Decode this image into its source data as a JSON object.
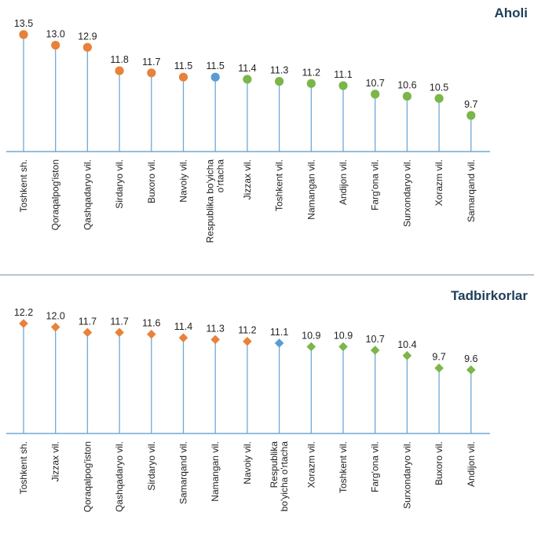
{
  "colors": {
    "high": "#e8823a",
    "average": "#5b9bd5",
    "low": "#7ab648",
    "stem": "#6fa8d6",
    "baseline": "#6fa8d6",
    "divider": "#8aa0b0"
  },
  "chart_data": [
    {
      "type": "lollipop",
      "title": "Aholi",
      "marker": "circle",
      "categories": [
        "Toshkent sh.",
        "Qoraqalpog'iston",
        "Qashqadaryo vil.",
        "Sirdaryo vil.",
        "Buxoro vil.",
        "Navoiy vil.",
        "Respublika bo'yicha o'rtacha",
        "Jizzax vil.",
        "Toshkent vil.",
        "Namangan vil.",
        "Andijon vil.",
        "Farg'ona vil.",
        "Surxondaryo vil.",
        "Xorazm vil.",
        "Samarqand vil."
      ],
      "label_lines": [
        [
          "Toshkent sh."
        ],
        [
          "Qoraqalpog'iston"
        ],
        [
          "Qashqadaryo vil."
        ],
        [
          "Sirdaryo vil."
        ],
        [
          "Buxoro vil."
        ],
        [
          "Navoiy vil."
        ],
        [
          "Respublika bo'yicha",
          "o'rtacha"
        ],
        [
          "Jizzax vil."
        ],
        [
          "Toshkent vil."
        ],
        [
          "Namangan vil."
        ],
        [
          "Andijon vil."
        ],
        [
          "Farg'ona vil."
        ],
        [
          "Surxondaryo vil."
        ],
        [
          "Xorazm vil."
        ],
        [
          "Samarqand vil."
        ]
      ],
      "values": [
        13.5,
        13.0,
        12.9,
        11.8,
        11.7,
        11.5,
        11.5,
        11.4,
        11.3,
        11.2,
        11.1,
        10.7,
        10.6,
        10.5,
        9.7
      ],
      "value_labels": [
        "13.5",
        "13.0",
        "12.9",
        "11.8",
        "11.7",
        "11.5",
        "11.5",
        "11.4",
        "11.3",
        "11.2",
        "11.1",
        "10.7",
        "10.6",
        "10.5",
        "9.7"
      ],
      "groups": [
        "high",
        "high",
        "high",
        "high",
        "high",
        "high",
        "average",
        "low",
        "low",
        "low",
        "low",
        "low",
        "low",
        "low",
        "low"
      ]
    },
    {
      "type": "lollipop",
      "title": "Tadbirkorlar",
      "marker": "diamond",
      "categories": [
        "Toshkent sh.",
        "Jizzax vil.",
        "Qoraqalpog'iston",
        "Qashqadaryo vil.",
        "Sirdaryo vil.",
        "Samarqand vil.",
        "Namangan vil.",
        "Navoiy vil.",
        "Respublika bo'yicha o'rtacha",
        "Xorazm vil.",
        "Toshkent vil.",
        "Farg'ona vil.",
        "Surxondaryo vil.",
        "Buxoro vil.",
        "Andijon vil."
      ],
      "label_lines": [
        [
          "Toshkent sh."
        ],
        [
          "Jizzax vil."
        ],
        [
          "Qoraqalpog'iston"
        ],
        [
          "Qashqadaryo vil."
        ],
        [
          "Sirdaryo vil."
        ],
        [
          "Samarqand vil."
        ],
        [
          "Namangan vil."
        ],
        [
          "Navoiy vil."
        ],
        [
          "Respublika",
          "bo'yicha o'rtacha"
        ],
        [
          "Xorazm vil."
        ],
        [
          "Toshkent vil."
        ],
        [
          "Farg'ona vil."
        ],
        [
          "Surxondaryo vil."
        ],
        [
          "Buxoro vil."
        ],
        [
          "Andijon vil."
        ]
      ],
      "values": [
        12.2,
        12.0,
        11.7,
        11.7,
        11.6,
        11.4,
        11.3,
        11.2,
        11.1,
        10.9,
        10.9,
        10.7,
        10.4,
        9.7,
        9.6
      ],
      "value_labels": [
        "12.2",
        "12.0",
        "11.7",
        "11.7",
        "11.6",
        "11.4",
        "11.3",
        "11.2",
        "11.1",
        "10.9",
        "10.9",
        "10.7",
        "10.4",
        "9.7",
        "9.6"
      ],
      "groups": [
        "high",
        "high",
        "high",
        "high",
        "high",
        "high",
        "high",
        "high",
        "average",
        "low",
        "low",
        "low",
        "low",
        "low",
        "low"
      ]
    }
  ]
}
